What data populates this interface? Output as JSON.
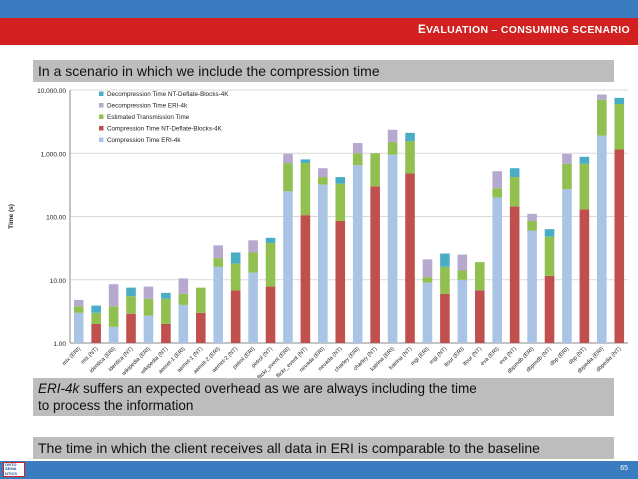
{
  "slide": {
    "title": "Evaluation – consuming scenario",
    "top_note": "In a scenario in which we include the compression time",
    "mid_note_emphasis": "ERI-4k",
    "mid_note_line1_rest": " suffers an expected overhead as we are always including the time",
    "mid_note_line2": "to process the information",
    "bottom_note": "The time in which the client receives all data in ERI is comparable to the baseline",
    "page_number": "65",
    "logo_text": [
      "ONTO",
      "SEMA",
      "NTICS"
    ]
  },
  "colors": {
    "decompression_nt": "#4bacc6",
    "decompression_eri": "#b7a8d0",
    "transmission": "#92c050",
    "compression_nt": "#c0504d",
    "compression_eri": "#a9c4e5",
    "title_bar": "#d21f1f",
    "accent_blue": "#3b7bbf"
  },
  "chart_data": {
    "type": "bar",
    "stacked": true,
    "y_scale": "log",
    "ylabel": "Time (s)",
    "ylim": [
      1,
      10000
    ],
    "yticks": [
      "1.00",
      "10.00",
      "100.00",
      "1,000.00",
      "10,000.00"
    ],
    "legend_position": "top-left",
    "legend": [
      {
        "name": "Decompression Time NT-Deflate-Blocks-4K",
        "color_key": "decompression_nt"
      },
      {
        "name": "Decompression Time ERI-4k",
        "color_key": "decompression_eri"
      },
      {
        "name": "Estimated Transmission Time",
        "color_key": "transmission"
      },
      {
        "name": "Compression Time NT-Deflate-Blocks-4K",
        "color_key": "compression_nt"
      },
      {
        "name": "Compression Time ERI-4k",
        "color_key": "compression_eri"
      }
    ],
    "categories": [
      "mix (ERI)",
      "mix (NT)",
      "identica (ERI)",
      "identica (NT)",
      "wikipedia (ERI)",
      "wikipedia (NT)",
      "aemet-1 (ERI)",
      "aemet-1 (NT)",
      "aemet-2 (ERI)",
      "aemet-2 (NT)",
      "petrol (ERI)",
      "petrol (NT)",
      "flickr_event (ERI)",
      "flickr_event (NT)",
      "nevada (ERI)",
      "nevada (NT)",
      "charley (ERI)",
      "charley (NT)",
      "katrina (ERI)",
      "katrina (NT)",
      "mgi (ERI)",
      "mgi (NT)",
      "ltour (ERI)",
      "ltour (NT)",
      "eva (ERI)",
      "eva (NT)",
      "dbpmdb (ERI)",
      "dbpmdb (NT)",
      "dbp (ERI)",
      "dbp (NT)",
      "dbpedia (ERI)",
      "dbpedia (NT)"
    ],
    "series": [
      {
        "name": "Compression Time ERI-4k",
        "values": [
          3.0,
          0,
          1.8,
          0,
          2.7,
          0,
          4.0,
          0,
          16,
          0,
          13,
          0,
          250,
          0,
          320,
          0,
          650,
          0,
          950,
          0,
          9,
          0,
          10,
          0,
          200,
          0,
          60,
          0,
          270,
          0,
          1900,
          0
        ]
      },
      {
        "name": "Compression Time NT-Deflate-Blocks-4K",
        "values": [
          0,
          2.0,
          0,
          2.9,
          0,
          2.0,
          0,
          3.0,
          0,
          6.8,
          0,
          7.8,
          0,
          105,
          0,
          85,
          0,
          300,
          0,
          480,
          0,
          6,
          0,
          6.8,
          0,
          145,
          0,
          11.5,
          0,
          130,
          0,
          1150
        ]
      },
      {
        "name": "Estimated Transmission Time",
        "values": [
          3.8,
          3.0,
          3.8,
          5.5,
          5.0,
          5.0,
          6.0,
          7.5,
          22,
          18,
          27,
          38,
          700,
          700,
          420,
          330,
          1000,
          1000,
          1500,
          1550,
          11,
          16,
          14,
          19,
          280,
          420,
          85,
          48,
          680,
          680,
          7000,
          6000
        ]
      },
      {
        "name": "Decompression Time ERI-4k",
        "values": [
          4.8,
          0,
          8.5,
          0,
          7.8,
          0,
          10.5,
          0,
          35,
          0,
          42,
          0,
          980,
          0,
          580,
          0,
          1450,
          0,
          2350,
          0,
          21,
          0,
          25,
          0,
          520,
          0,
          110,
          0,
          980,
          0,
          8500,
          0
        ]
      },
      {
        "name": "Decompression Time NT-Deflate-Blocks-4K",
        "values": [
          0,
          3.9,
          0,
          7.5,
          0,
          6.2,
          0,
          0,
          0,
          27,
          0,
          46,
          0,
          800,
          0,
          420,
          0,
          0,
          0,
          2100,
          0,
          26,
          0,
          0,
          0,
          580,
          0,
          63,
          0,
          880,
          0,
          7500
        ]
      }
    ]
  }
}
